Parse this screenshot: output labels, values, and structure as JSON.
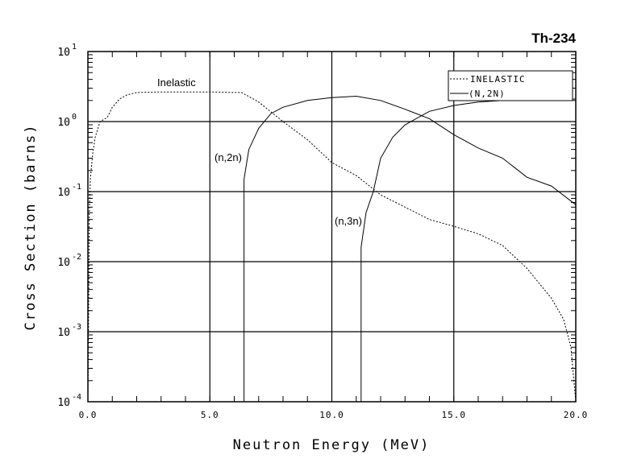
{
  "chart_data": {
    "type": "line",
    "title": "Th-234",
    "xlabel": "Neutron Energy (MeV)",
    "ylabel": "Cross Section (barns)",
    "xlim": [
      0,
      20
    ],
    "ylim": [
      0.0001,
      10
    ],
    "yscale": "log",
    "grid": true,
    "xticks": [
      "0.0",
      "5.0",
      "10.0",
      "15.0",
      "20.0"
    ],
    "yticks": [
      {
        "base": "10",
        "exp": "1"
      },
      {
        "base": "10",
        "exp": "0"
      },
      {
        "base": "10",
        "exp": "-1"
      },
      {
        "base": "10",
        "exp": "-2"
      },
      {
        "base": "10",
        "exp": "-3"
      },
      {
        "base": "10",
        "exp": "-4"
      }
    ],
    "legend": {
      "position": "top-right",
      "entries": [
        "INELASTIC",
        "(N,2N)"
      ]
    },
    "annotations": [
      "Inelastic",
      "(n,2n)",
      "(n,3n)"
    ],
    "series": [
      {
        "name": "INELASTIC",
        "style": "dashed",
        "x": [
          0,
          0.03,
          0.06,
          0.1,
          0.2,
          0.3,
          0.5,
          0.8,
          1.0,
          1.3,
          1.6,
          2.0,
          3,
          4,
          5,
          6,
          6.3,
          7,
          8,
          9,
          10,
          11,
          12,
          13,
          14,
          15,
          16,
          17,
          18,
          19,
          19.5,
          19.8,
          20
        ],
        "y": [
          0.0001,
          0.002,
          0.05,
          0.15,
          0.35,
          0.6,
          1.0,
          1.15,
          1.6,
          2.1,
          2.4,
          2.6,
          2.65,
          2.65,
          2.65,
          2.6,
          2.6,
          1.9,
          1.0,
          0.55,
          0.26,
          0.17,
          0.09,
          0.06,
          0.04,
          0.032,
          0.025,
          0.017,
          0.008,
          0.003,
          0.0015,
          0.0006,
          0.0001
        ]
      },
      {
        "name": "(N,2N)",
        "style": "solid",
        "x": [
          6.4,
          6.4,
          6.6,
          7,
          7.5,
          8,
          9,
          10,
          11,
          12,
          13,
          14,
          15,
          16,
          17,
          18,
          19,
          20
        ],
        "y": [
          0.0001,
          0.15,
          0.4,
          0.8,
          1.3,
          1.6,
          2.0,
          2.2,
          2.3,
          2.0,
          1.5,
          1.1,
          0.65,
          0.42,
          0.3,
          0.16,
          0.12,
          0.065
        ]
      },
      {
        "name": "(n,3n)",
        "style": "solid",
        "x": [
          11.2,
          11.2,
          11.4,
          11.7,
          12,
          12.5,
          13,
          14,
          15,
          16,
          17,
          18,
          20
        ],
        "y": [
          0.0001,
          0.016,
          0.05,
          0.1,
          0.3,
          0.6,
          0.9,
          1.4,
          1.7,
          1.9,
          2.0,
          2.05,
          2.1
        ]
      }
    ]
  }
}
